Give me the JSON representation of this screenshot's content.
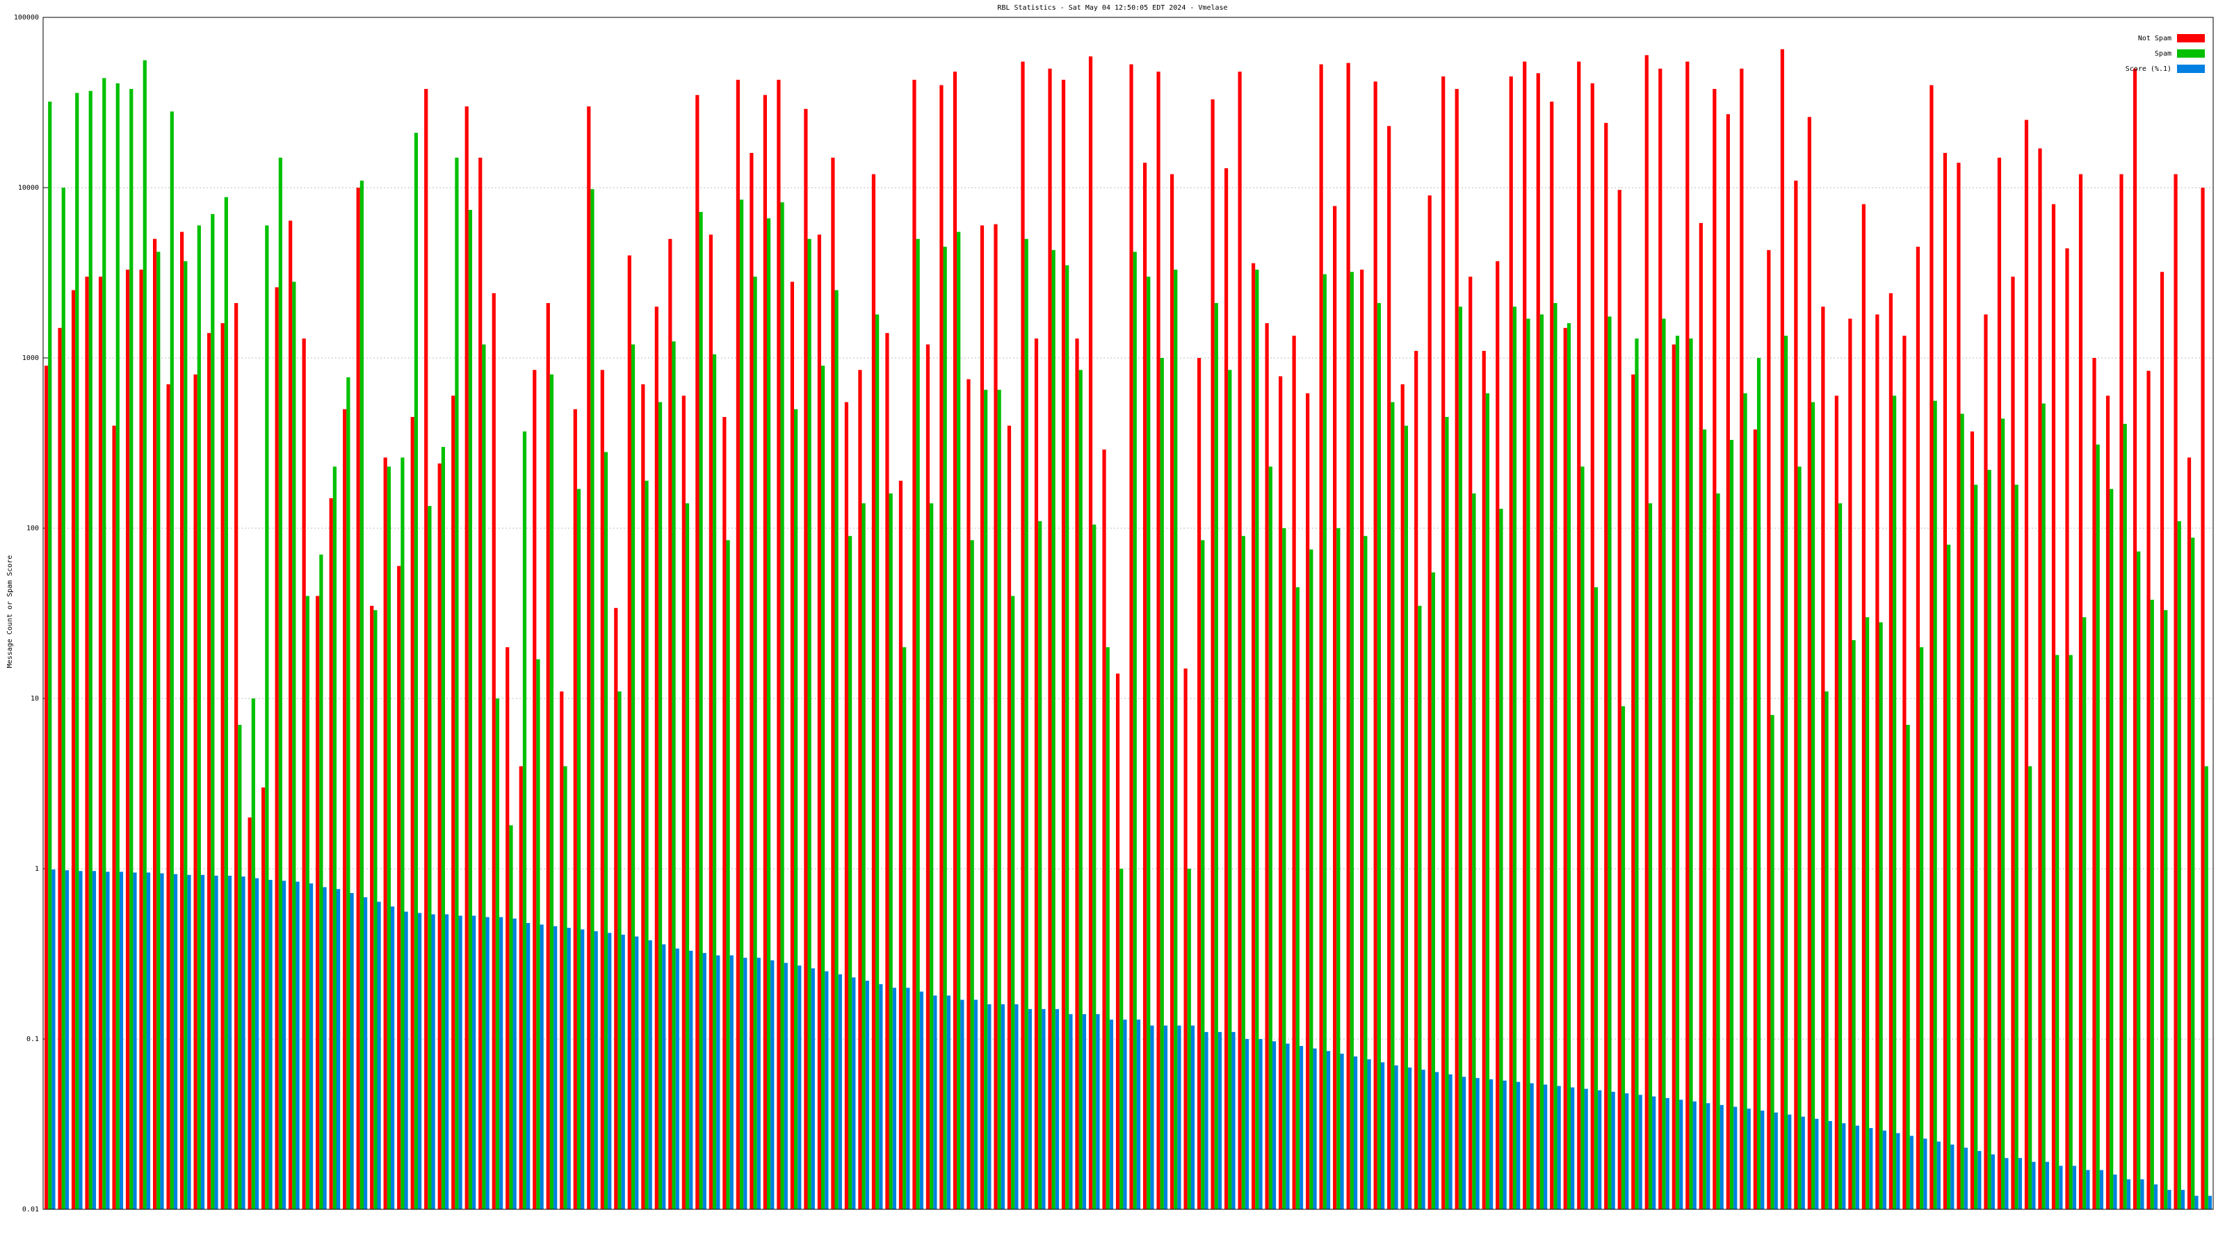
{
  "chart_data": {
    "type": "bar",
    "title": "RBL Statistics - Sat May 04 12:50:05 EDT 2024 - Vmelase",
    "y_label": "Message Count or Spam Score",
    "log_scale": true,
    "grid": true,
    "legend": "top-right",
    "ylim": [
      0.01,
      100000
    ],
    "yticks": [
      0.01,
      0.1,
      1,
      10,
      100,
      1000,
      10000,
      100000
    ],
    "categories": [
      null,
      null,
      null,
      null,
      null,
      null,
      null,
      null,
      null,
      null,
      null,
      null,
      null,
      null,
      null,
      null,
      null,
      null,
      null,
      null,
      null,
      null,
      null,
      null,
      null,
      null,
      null,
      null,
      null,
      null,
      null,
      null,
      null,
      null,
      null,
      null,
      null,
      null,
      null,
      null,
      null,
      null,
      null,
      null,
      null,
      null,
      null,
      null,
      null,
      null,
      null,
      null,
      null,
      null,
      null,
      null,
      null,
      null,
      null,
      null,
      null,
      null,
      null,
      null,
      null,
      null,
      null,
      null,
      null,
      null,
      null,
      null,
      null,
      null,
      null,
      null,
      null,
      null,
      null,
      null,
      null,
      null,
      null,
      null,
      null,
      null,
      null,
      null,
      null,
      null,
      null,
      null,
      null,
      null,
      null,
      null,
      null,
      null,
      null,
      null,
      null,
      null,
      null,
      null,
      null,
      null,
      null,
      null,
      null,
      null,
      null,
      null,
      null,
      null,
      null,
      null,
      null,
      null,
      null,
      null,
      null,
      null,
      null,
      null,
      null,
      null,
      null,
      null,
      null,
      null,
      null,
      null,
      null,
      null,
      null,
      null,
      null,
      null,
      null,
      null,
      null,
      null,
      null,
      null,
      null,
      null,
      null,
      null,
      null,
      null,
      null,
      null,
      null,
      null,
      null,
      null,
      null,
      null,
      null,
      null
    ],
    "series": [
      {
        "name": "Not Spam",
        "color": "#ff0000",
        "values": [
          900,
          1500,
          2500,
          3000,
          3000,
          400,
          3300,
          3300,
          5000,
          700,
          5500,
          800,
          1400,
          1600,
          2100,
          2,
          3,
          2600,
          6400,
          1300,
          40,
          150,
          500,
          10000,
          35,
          260,
          60,
          450,
          38000,
          240,
          600,
          30000,
          15000,
          2400,
          20,
          4,
          850,
          2100,
          11,
          500,
          30000,
          850,
          34,
          4000,
          700,
          2000,
          5000,
          600,
          35000,
          5300,
          450,
          43000,
          16000,
          35000,
          43000,
          2800,
          29000,
          5300,
          15000,
          550,
          850,
          12000,
          1400,
          190,
          43000,
          1200,
          40000,
          48000,
          750,
          6000,
          6100,
          400,
          55000,
          1300,
          50000,
          43000,
          1300,
          59000,
          290,
          14,
          53000,
          14000,
          48000,
          12000,
          15,
          1000,
          33000,
          13000,
          48000,
          3600,
          1600,
          780,
          1350,
          620,
          53000,
          7800,
          54000,
          3300,
          42000,
          23000,
          700,
          1100,
          9000,
          45000,
          38000,
          3000,
          1100,
          3700,
          45000,
          55000,
          47000,
          32000,
          1500,
          55000,
          41000,
          24000,
          9700,
          800,
          60000,
          50000,
          1200,
          55000,
          6200,
          38000,
          27000,
          50000,
          380,
          4300,
          65000,
          11000,
          26000,
          2000,
          600,
          1700,
          8000,
          1800,
          2400,
          1350,
          4500,
          40000,
          16000,
          14000,
          370,
          1800,
          15000,
          3000,
          25000,
          17000,
          8000,
          4400,
          12000,
          1000,
          600,
          12000,
          50000,
          840,
          3200,
          12000,
          260,
          10000
        ]
      },
      {
        "name": "Spam",
        "color": "#00c000",
        "values": [
          32000,
          10000,
          36000,
          37000,
          44000,
          41000,
          38000,
          56000,
          4200,
          28000,
          3700,
          6000,
          7000,
          8800,
          7,
          10,
          6000,
          15000,
          2800,
          40,
          70,
          230,
          770,
          11000,
          33,
          230,
          260,
          21000,
          135,
          300,
          15000,
          7400,
          1200,
          10,
          1.8,
          370,
          17,
          800,
          4,
          170,
          9800,
          280,
          11,
          1200,
          190,
          550,
          1250,
          140,
          7200,
          1050,
          85,
          8500,
          3000,
          6600,
          8200,
          500,
          5000,
          900,
          2500,
          90,
          140,
          1800,
          160,
          20,
          5000,
          140,
          4500,
          5500,
          85,
          650,
          650,
          40,
          5000,
          110,
          4300,
          3500,
          850,
          105,
          20,
          1,
          4200,
          3000,
          1000,
          3300,
          1,
          85,
          2100,
          850,
          90,
          3300,
          230,
          100,
          45,
          75,
          3100,
          100,
          3200,
          90,
          2100,
          550,
          400,
          35,
          55,
          450,
          2000,
          160,
          620,
          130,
          2000,
          1700,
          1800,
          2100,
          1600,
          230,
          45,
          1750,
          9,
          1300,
          140,
          1700,
          1350,
          1300,
          380,
          160,
          330,
          620,
          1000,
          8,
          1350,
          230,
          550,
          11,
          140,
          22,
          30,
          28,
          600,
          7,
          20,
          560,
          80,
          470,
          180,
          220,
          440,
          180,
          4,
          540,
          18,
          18,
          30,
          310,
          170,
          410,
          73,
          38,
          33,
          110,
          88,
          4
        ]
      },
      {
        "name": "Score (%.1)",
        "color": "#0080e0",
        "values": [
          0.99,
          0.98,
          0.97,
          0.97,
          0.96,
          0.96,
          0.95,
          0.95,
          0.94,
          0.93,
          0.92,
          0.92,
          0.91,
          0.91,
          0.9,
          0.88,
          0.86,
          0.85,
          0.84,
          0.82,
          0.78,
          0.76,
          0.72,
          0.68,
          0.64,
          0.6,
          0.56,
          0.55,
          0.54,
          0.54,
          0.53,
          0.53,
          0.52,
          0.52,
          0.51,
          0.48,
          0.47,
          0.46,
          0.45,
          0.44,
          0.43,
          0.42,
          0.41,
          0.4,
          0.38,
          0.36,
          0.34,
          0.33,
          0.32,
          0.31,
          0.31,
          0.3,
          0.3,
          0.29,
          0.28,
          0.27,
          0.26,
          0.25,
          0.24,
          0.23,
          0.22,
          0.21,
          0.2,
          0.2,
          0.19,
          0.18,
          0.18,
          0.17,
          0.17,
          0.16,
          0.16,
          0.16,
          0.15,
          0.15,
          0.15,
          0.14,
          0.14,
          0.14,
          0.13,
          0.13,
          0.13,
          0.12,
          0.12,
          0.12,
          0.12,
          0.11,
          0.11,
          0.11,
          0.1,
          0.1,
          0.097,
          0.094,
          0.091,
          0.088,
          0.085,
          0.082,
          0.079,
          0.076,
          0.073,
          0.07,
          0.068,
          0.066,
          0.064,
          0.062,
          0.06,
          0.059,
          0.058,
          0.057,
          0.056,
          0.055,
          0.054,
          0.053,
          0.052,
          0.051,
          0.05,
          0.049,
          0.048,
          0.047,
          0.046,
          0.045,
          0.044,
          0.043,
          0.042,
          0.041,
          0.04,
          0.039,
          0.038,
          0.037,
          0.036,
          0.035,
          0.034,
          0.033,
          0.032,
          0.031,
          0.03,
          0.029,
          0.028,
          0.027,
          0.026,
          0.025,
          0.024,
          0.023,
          0.022,
          0.021,
          0.02,
          0.02,
          0.019,
          0.019,
          0.018,
          0.018,
          0.017,
          0.017,
          0.016,
          0.015,
          0.015,
          0.014,
          0.013,
          0.013,
          0.012,
          0.012
        ]
      }
    ]
  }
}
